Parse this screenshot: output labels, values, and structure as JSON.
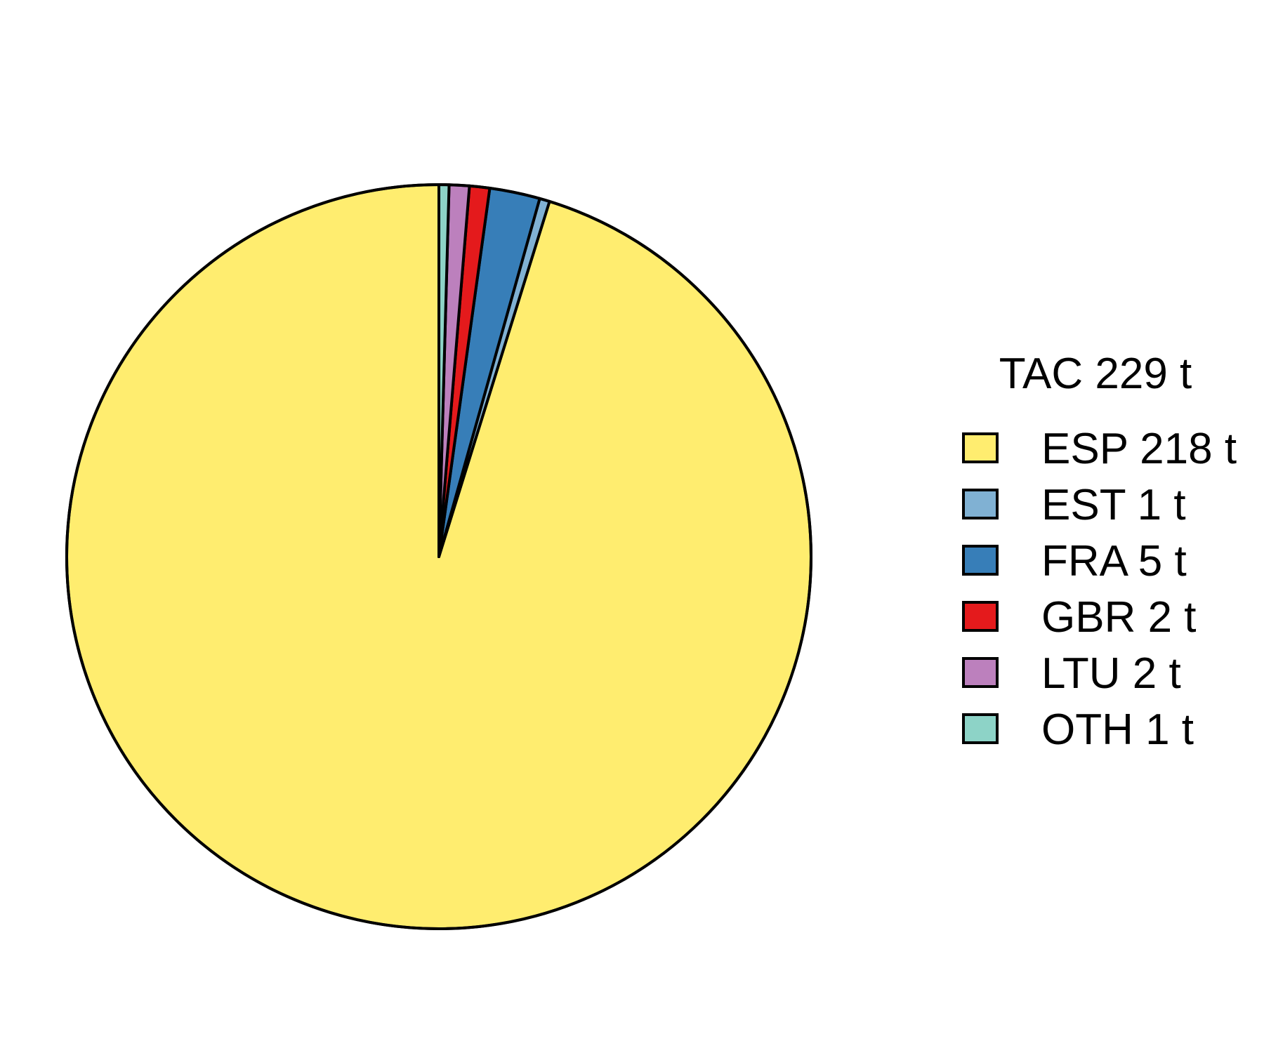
{
  "chart_data": {
    "type": "pie",
    "legend_title": "TAC 229 t",
    "legend_position": "right",
    "start_angle": "12 o'clock",
    "direction": "counter-clockwise",
    "slices": [
      {
        "name": "ESP",
        "value": 218,
        "label": "ESP 218 t",
        "color": "#FFED6F"
      },
      {
        "name": "EST",
        "value": 1,
        "label": "EST 1 t",
        "color": "#80B1D3"
      },
      {
        "name": "FRA",
        "value": 5,
        "label": "FRA 5 t",
        "color": "#377EB8"
      },
      {
        "name": "GBR",
        "value": 2,
        "label": "GBR 2 t",
        "color": "#E41A1C"
      },
      {
        "name": "LTU",
        "value": 2,
        "label": "LTU 2 t",
        "color": "#BC80BD"
      },
      {
        "name": "OTH",
        "value": 1,
        "label": "OTH 1 t",
        "color": "#8DD3C7"
      }
    ]
  }
}
